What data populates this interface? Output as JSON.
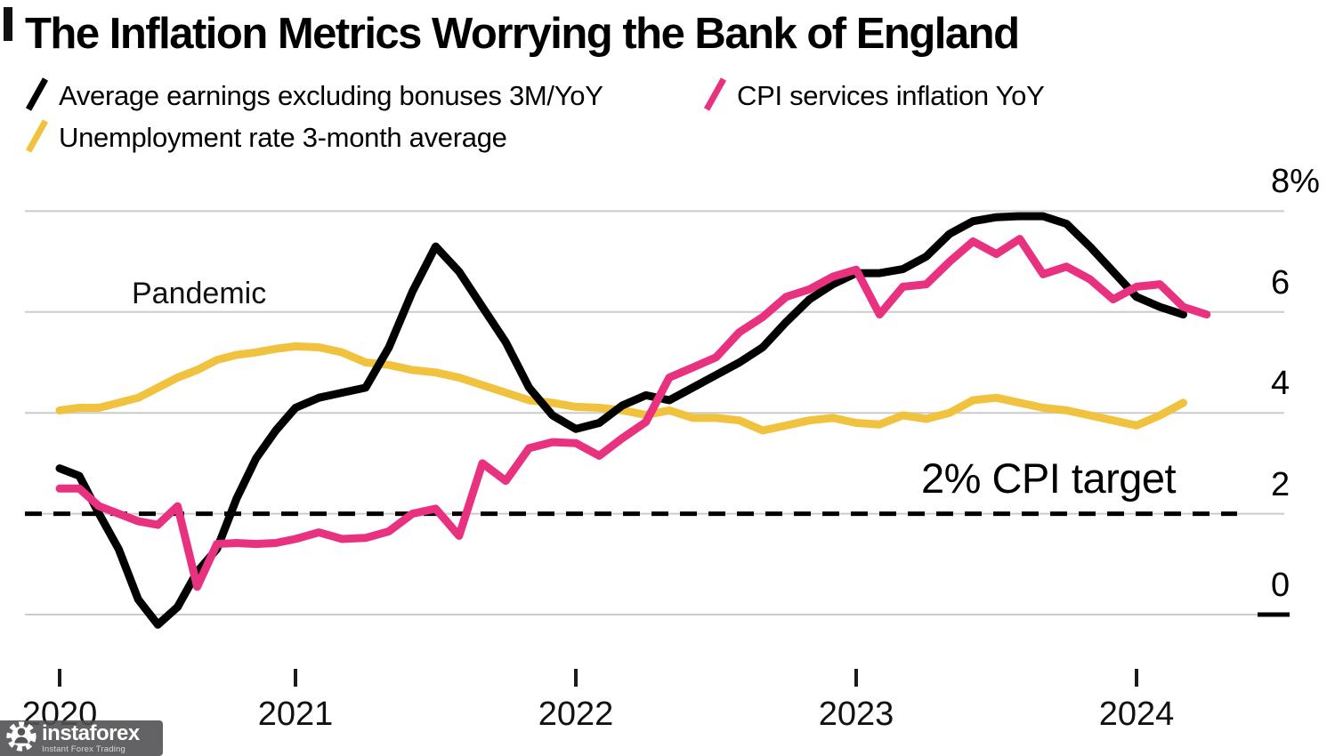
{
  "header": {
    "title": "The Inflation Metrics Worrying the Bank of England"
  },
  "annotations": {
    "pandemic": "Pandemic",
    "cpi_target": "2% CPI target"
  },
  "watermark": {
    "brand": "instaforex",
    "tagline": "Instant Forex Trading"
  },
  "chart_data": {
    "type": "line",
    "title": "The Inflation Metrics Worrying the Bank of England",
    "frequency": "monthly",
    "start_month": "2020-01",
    "x_tick_labels": [
      "2020",
      "2021",
      "2022",
      "2023",
      "2024"
    ],
    "y_ticks": [
      {
        "v": 8,
        "label": "8%"
      },
      {
        "v": 6,
        "label": "6"
      },
      {
        "v": 4,
        "label": "4"
      },
      {
        "v": 2,
        "label": "2"
      },
      {
        "v": 0,
        "label": "0"
      }
    ],
    "ylim": [
      -0.5,
      8.2
    ],
    "grid_color": "#cbcbcb",
    "legend_position": "top-left",
    "target_line": {
      "value": 2,
      "label": "2% CPI target",
      "style": "dashed",
      "color": "#000000"
    },
    "series": [
      {
        "id": "avg-earnings-line",
        "name": "Average earnings excluding bonuses 3M/YoY",
        "color": "#000000",
        "values": [
          2.9,
          2.75,
          2.0,
          1.3,
          0.3,
          -0.2,
          0.15,
          0.85,
          1.3,
          2.3,
          3.1,
          3.65,
          4.1,
          4.3,
          4.4,
          4.5,
          5.3,
          6.4,
          7.3,
          6.8,
          6.1,
          5.4,
          4.5,
          3.95,
          3.68,
          3.8,
          4.15,
          4.35,
          4.25,
          4.5,
          4.75,
          5.0,
          5.3,
          5.8,
          6.25,
          6.55,
          6.77,
          6.77,
          6.85,
          7.1,
          7.55,
          7.8,
          7.88,
          7.9,
          7.9,
          7.75,
          7.3,
          6.8,
          6.3,
          6.1,
          5.95
        ]
      },
      {
        "id": "cpi-services-line",
        "name": "CPI services inflation YoY",
        "color": "#e8327f",
        "values": [
          2.5,
          2.5,
          2.15,
          2.0,
          1.85,
          1.78,
          2.15,
          0.55,
          1.4,
          1.42,
          1.4,
          1.42,
          1.5,
          1.63,
          1.5,
          1.52,
          1.65,
          2.0,
          2.1,
          1.56,
          3.0,
          2.65,
          3.3,
          3.42,
          3.4,
          3.15,
          3.5,
          3.82,
          4.7,
          4.9,
          5.1,
          5.6,
          5.9,
          6.3,
          6.45,
          6.7,
          6.84,
          5.95,
          6.5,
          6.55,
          7.0,
          7.4,
          7.15,
          7.45,
          6.75,
          6.9,
          6.65,
          6.25,
          6.5,
          6.55,
          6.1,
          5.95
        ]
      },
      {
        "id": "unemployment-line",
        "name": "Unemployment rate 3-month average",
        "color": "#f0c23e",
        "values": [
          4.05,
          4.1,
          4.1,
          4.2,
          4.3,
          4.5,
          4.7,
          4.85,
          5.05,
          5.15,
          5.2,
          5.27,
          5.32,
          5.3,
          5.2,
          5.0,
          4.95,
          4.85,
          4.8,
          4.7,
          4.55,
          4.4,
          4.25,
          4.2,
          4.12,
          4.1,
          4.05,
          3.96,
          4.05,
          3.9,
          3.9,
          3.85,
          3.65,
          3.75,
          3.85,
          3.9,
          3.8,
          3.77,
          3.95,
          3.88,
          4.0,
          4.25,
          4.3,
          4.2,
          4.1,
          4.05,
          3.95,
          3.85,
          3.75,
          3.95,
          4.2
        ]
      }
    ]
  }
}
